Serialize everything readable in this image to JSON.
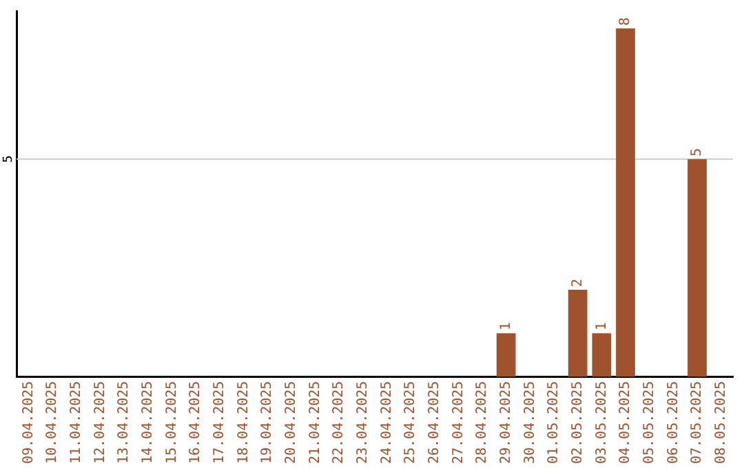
{
  "chart_data": {
    "type": "bar",
    "categories": [
      "09.04.2025",
      "10.04.2025",
      "11.04.2025",
      "12.04.2025",
      "13.04.2025",
      "14.04.2025",
      "15.04.2025",
      "16.04.2025",
      "17.04.2025",
      "18.04.2025",
      "19.04.2025",
      "20.04.2025",
      "21.04.2025",
      "22.04.2025",
      "23.04.2025",
      "24.04.2025",
      "25.04.2025",
      "26.04.2025",
      "27.04.2025",
      "28.04.2025",
      "29.04.2025",
      "30.04.2025",
      "01.05.2025",
      "02.05.2025",
      "03.05.2025",
      "04.05.2025",
      "05.05.2025",
      "06.05.2025",
      "07.05.2025",
      "08.05.2025"
    ],
    "values": [
      null,
      null,
      null,
      null,
      null,
      null,
      null,
      null,
      null,
      null,
      null,
      null,
      null,
      null,
      null,
      null,
      null,
      null,
      null,
      null,
      1,
      null,
      null,
      2,
      1,
      8,
      null,
      null,
      5,
      null
    ],
    "data_labels": true,
    "color": "#a0522d",
    "ylim": [
      0,
      8.4
    ],
    "ref_lines": [
      {
        "axis": "y",
        "value": 5,
        "label": "5",
        "color": "#cccccc"
      }
    ],
    "legend": false
  }
}
